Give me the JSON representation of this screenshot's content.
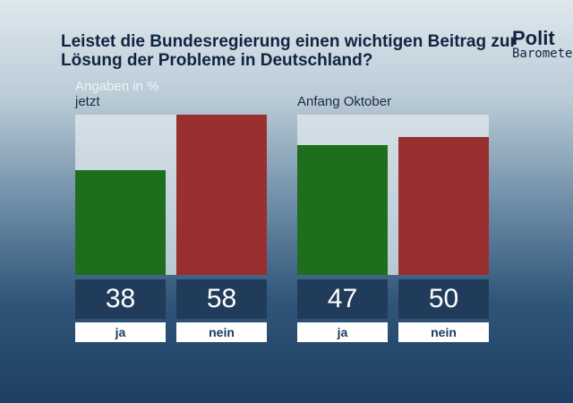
{
  "title": "Leistet die Bundesregierung einen wichtigen Beitrag zur Lösung der Probleme in Deutschland?",
  "logo": {
    "line1": "Polit",
    "line2": "Barometer"
  },
  "chart_data": [
    {
      "type": "bar",
      "title": "jetzt",
      "subtitle": "Angaben in %",
      "categories": [
        "ja",
        "nein"
      ],
      "values": [
        38,
        58
      ],
      "colors": [
        "#1e6e1e",
        "#9a2f2f"
      ],
      "ylim": [
        0,
        58
      ]
    },
    {
      "type": "bar",
      "title": "Anfang Oktober",
      "categories": [
        "ja",
        "nein"
      ],
      "values": [
        47,
        50
      ],
      "colors": [
        "#1e6e1e",
        "#9a2f2f"
      ],
      "ylim": [
        0,
        58
      ]
    }
  ]
}
